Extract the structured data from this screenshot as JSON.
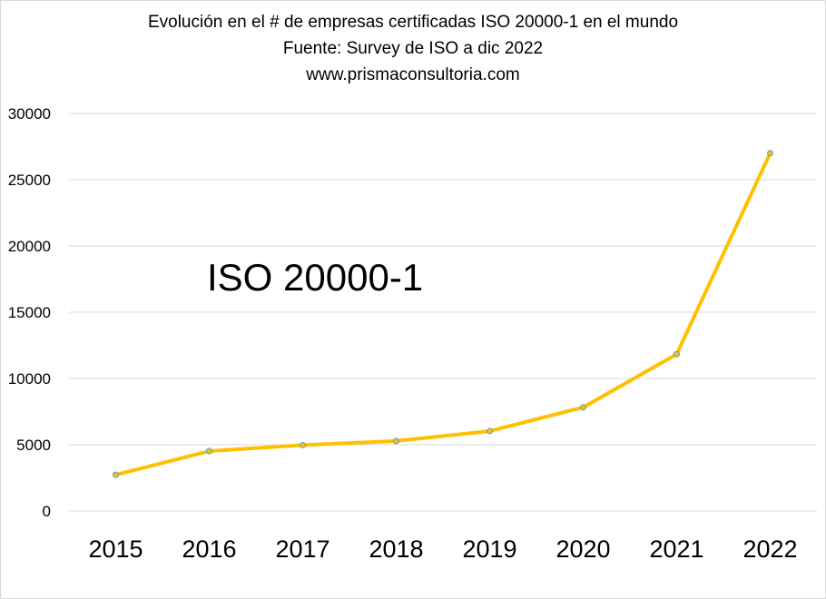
{
  "chart_data": {
    "type": "line",
    "title": "Evolución en el  # de empresas certificadas ISO 20000-1 en el mundo",
    "subtitle": "Fuente: Survey de ISO a dic 2022",
    "source_url": "www.prismaconsultoria.com",
    "annotation": "ISO 20000-1",
    "xlabel": "",
    "ylabel": "",
    "categories": [
      "2015",
      "2016",
      "2017",
      "2018",
      "2019",
      "2020",
      "2021",
      "2022"
    ],
    "series": [
      {
        "name": "ISO 20000-1",
        "values": [
          2730,
          4520,
          4970,
          5280,
          6030,
          7820,
          11830,
          27000
        ],
        "color": "#FFC000",
        "marker_color": "#5B9BD5"
      }
    ],
    "ylim": [
      0,
      30000
    ],
    "yticks": [
      0,
      5000,
      10000,
      15000,
      20000,
      25000,
      30000
    ],
    "grid": true,
    "legend": "none"
  }
}
